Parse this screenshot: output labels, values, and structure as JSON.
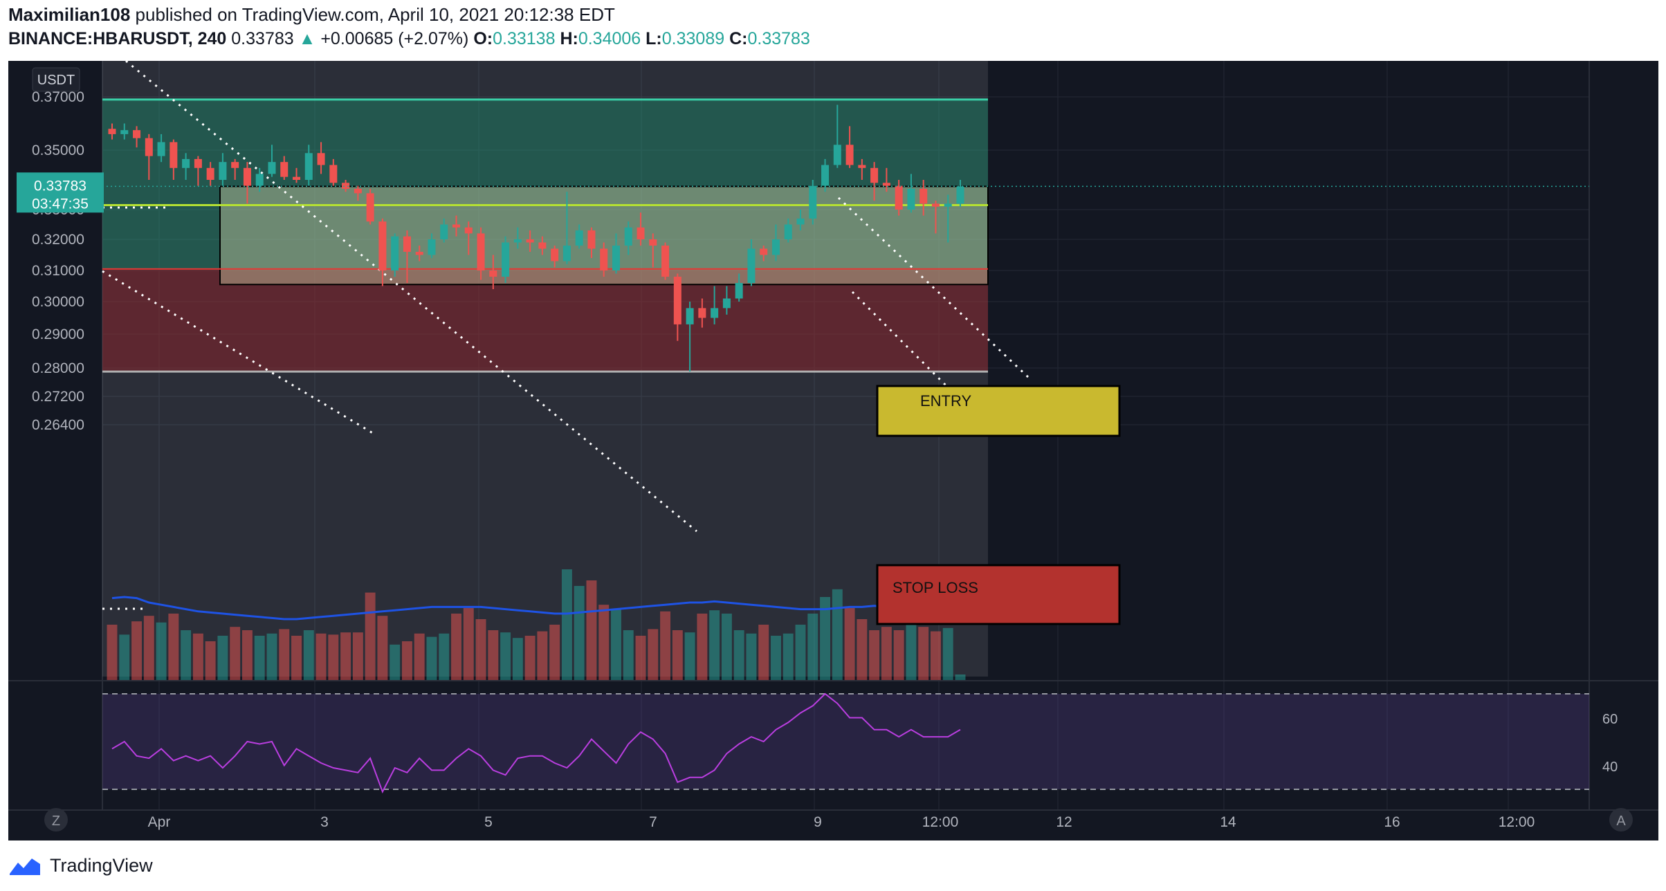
{
  "header": {
    "author": "Maximilian108",
    "published": "published on TradingView.com, April 10, 2021 20:12:38 EDT",
    "symbol": "BINANCE:HBARUSDT, 240",
    "last": "0.33783",
    "arrow": "▲",
    "change": "+0.00685 (+2.07%)",
    "o_label": "O:",
    "o": "0.33138",
    "h_label": "H:",
    "h": "0.34006",
    "l_label": "L:",
    "l": "0.33089",
    "c_label": "C:",
    "c": "0.33783"
  },
  "footer": {
    "brand": "TradingView"
  },
  "colors": {
    "up": "#26a69a",
    "down": "#ef5350",
    "background": "#131722",
    "rsi": "#ba3ee0",
    "volume_ma": "#1e53e5"
  },
  "chart_data": {
    "type": "candlestick",
    "currency_label": "USDT",
    "price_ticks": [
      "0.37000",
      "0.35000",
      "0.33000",
      "0.32000",
      "0.31000",
      "0.30000",
      "0.29000",
      "0.28000",
      "0.27200",
      "0.26400"
    ],
    "time_ticks": [
      "Apr",
      "3",
      "5",
      "7",
      "9",
      "12:00",
      "12",
      "14",
      "16",
      "12:00"
    ],
    "last_price_tag": "0.33783",
    "countdown": "03:47:35",
    "levels": {
      "take_profit": 0.369,
      "entry_top": 0.3315,
      "entry": 0.3105,
      "stop_loss": 0.279
    },
    "annotations": [
      "ENTRY",
      "STOP LOSS"
    ],
    "rsi": {
      "ticks": [
        "60",
        "40"
      ],
      "upper_band": 70,
      "lower_band": 30
    },
    "candles": [
      [
        0.358,
        0.356,
        0.36,
        0.354
      ],
      [
        0.356,
        0.3575,
        0.36,
        0.354
      ],
      [
        0.3575,
        0.3545,
        0.359,
        0.351
      ],
      [
        0.3545,
        0.348,
        0.356,
        0.34
      ],
      [
        0.348,
        0.353,
        0.356,
        0.346
      ],
      [
        0.353,
        0.344,
        0.354,
        0.34
      ],
      [
        0.344,
        0.347,
        0.349,
        0.34
      ],
      [
        0.347,
        0.344,
        0.348,
        0.338
      ],
      [
        0.344,
        0.34,
        0.346,
        0.338
      ],
      [
        0.34,
        0.346,
        0.349,
        0.338
      ],
      [
        0.346,
        0.344,
        0.347,
        0.34
      ],
      [
        0.344,
        0.338,
        0.346,
        0.332
      ],
      [
        0.338,
        0.342,
        0.344,
        0.336
      ],
      [
        0.342,
        0.346,
        0.352,
        0.341
      ],
      [
        0.346,
        0.341,
        0.348,
        0.34
      ],
      [
        0.341,
        0.34,
        0.344,
        0.339
      ],
      [
        0.34,
        0.349,
        0.352,
        0.338
      ],
      [
        0.349,
        0.345,
        0.353,
        0.342
      ],
      [
        0.345,
        0.339,
        0.347,
        0.338
      ],
      [
        0.339,
        0.337,
        0.34,
        0.336
      ],
      [
        0.337,
        0.3355,
        0.338,
        0.333
      ],
      [
        0.3355,
        0.326,
        0.337,
        0.325
      ],
      [
        0.326,
        0.31,
        0.327,
        0.305
      ],
      [
        0.31,
        0.321,
        0.322,
        0.308
      ],
      [
        0.321,
        0.316,
        0.323,
        0.306
      ],
      [
        0.316,
        0.315,
        0.318,
        0.313
      ],
      [
        0.315,
        0.32,
        0.322,
        0.314
      ],
      [
        0.32,
        0.325,
        0.327,
        0.319
      ],
      [
        0.325,
        0.324,
        0.328,
        0.321
      ],
      [
        0.324,
        0.322,
        0.326,
        0.315
      ],
      [
        0.322,
        0.31,
        0.324,
        0.307
      ],
      [
        0.31,
        0.308,
        0.315,
        0.304
      ],
      [
        0.308,
        0.319,
        0.321,
        0.306
      ],
      [
        0.319,
        0.32,
        0.324,
        0.317
      ],
      [
        0.32,
        0.319,
        0.323,
        0.316
      ],
      [
        0.319,
        0.317,
        0.321,
        0.315
      ],
      [
        0.317,
        0.313,
        0.318,
        0.311
      ],
      [
        0.313,
        0.318,
        0.336,
        0.312
      ],
      [
        0.318,
        0.323,
        0.325,
        0.317
      ],
      [
        0.323,
        0.317,
        0.324,
        0.314
      ],
      [
        0.317,
        0.31,
        0.319,
        0.308
      ],
      [
        0.31,
        0.318,
        0.322,
        0.309
      ],
      [
        0.318,
        0.324,
        0.326,
        0.315
      ],
      [
        0.324,
        0.32,
        0.329,
        0.318
      ],
      [
        0.32,
        0.318,
        0.322,
        0.311
      ],
      [
        0.318,
        0.308,
        0.319,
        0.307
      ],
      [
        0.308,
        0.293,
        0.309,
        0.288
      ],
      [
        0.293,
        0.298,
        0.3,
        0.279
      ],
      [
        0.298,
        0.295,
        0.301,
        0.292
      ],
      [
        0.295,
        0.298,
        0.305,
        0.293
      ],
      [
        0.298,
        0.301,
        0.305,
        0.296
      ],
      [
        0.301,
        0.306,
        0.309,
        0.3
      ],
      [
        0.306,
        0.317,
        0.32,
        0.305
      ],
      [
        0.317,
        0.315,
        0.318,
        0.313
      ],
      [
        0.315,
        0.32,
        0.325,
        0.313
      ],
      [
        0.32,
        0.325,
        0.327,
        0.319
      ],
      [
        0.325,
        0.327,
        0.33,
        0.323
      ],
      [
        0.327,
        0.338,
        0.34,
        0.325
      ],
      [
        0.338,
        0.345,
        0.347,
        0.336
      ],
      [
        0.345,
        0.352,
        0.367,
        0.344
      ],
      [
        0.352,
        0.345,
        0.359,
        0.344
      ],
      [
        0.345,
        0.344,
        0.347,
        0.34
      ],
      [
        0.344,
        0.339,
        0.346,
        0.333
      ],
      [
        0.339,
        0.338,
        0.344,
        0.336
      ],
      [
        0.338,
        0.33,
        0.34,
        0.328
      ],
      [
        0.33,
        0.337,
        0.342,
        0.329
      ],
      [
        0.337,
        0.332,
        0.34,
        0.328
      ],
      [
        0.332,
        0.331,
        0.333,
        0.322
      ],
      [
        0.331,
        0.332,
        0.335,
        0.319
      ],
      [
        0.332,
        0.3378,
        0.34,
        0.3309
      ]
    ],
    "volume": [
      50,
      41,
      53,
      58,
      52,
      60,
      45,
      42,
      35,
      40,
      48,
      45,
      40,
      42,
      46,
      40,
      45,
      42,
      41,
      43,
      43,
      79,
      58,
      32,
      35,
      42,
      39,
      42,
      60,
      65,
      55,
      45,
      43,
      38,
      40,
      44,
      50,
      100,
      85,
      90,
      68,
      64,
      45,
      40,
      46,
      62,
      45,
      43,
      60,
      63,
      60,
      45,
      42,
      50,
      40,
      42,
      50,
      60,
      75,
      82,
      65,
      55,
      45,
      48,
      45,
      50,
      48,
      44,
      47,
      5
    ],
    "volume_ma": [
      74,
      75,
      74,
      70,
      68,
      66,
      64,
      62,
      61,
      60,
      59,
      58,
      57,
      56,
      55,
      55,
      56,
      57,
      58,
      59,
      60,
      61,
      62,
      63,
      64,
      65,
      66,
      66,
      66,
      66,
      66,
      65,
      64,
      63,
      62,
      61,
      60,
      60,
      61,
      62,
      63,
      64,
      65,
      66,
      67,
      68,
      69,
      70,
      70,
      71,
      70,
      69,
      68,
      67,
      66,
      65,
      64,
      64,
      64,
      65,
      66,
      66,
      67,
      66,
      65,
      64,
      63,
      62,
      61,
      60
    ],
    "rsi_values": [
      47,
      50,
      44,
      43,
      47,
      42,
      44,
      42,
      44,
      39,
      44,
      50,
      49,
      50,
      40,
      47,
      44,
      41,
      39,
      38,
      37,
      43,
      29,
      39,
      37,
      43,
      38,
      38,
      43,
      47,
      44,
      38,
      36,
      43,
      44,
      44,
      41,
      39,
      44,
      51,
      46,
      41,
      49,
      54,
      51,
      45,
      33,
      35,
      35,
      38,
      45,
      49,
      52,
      50,
      55,
      58,
      62,
      65,
      70,
      66,
      60,
      60,
      55,
      55,
      52,
      55,
      52,
      52,
      52,
      55
    ]
  }
}
